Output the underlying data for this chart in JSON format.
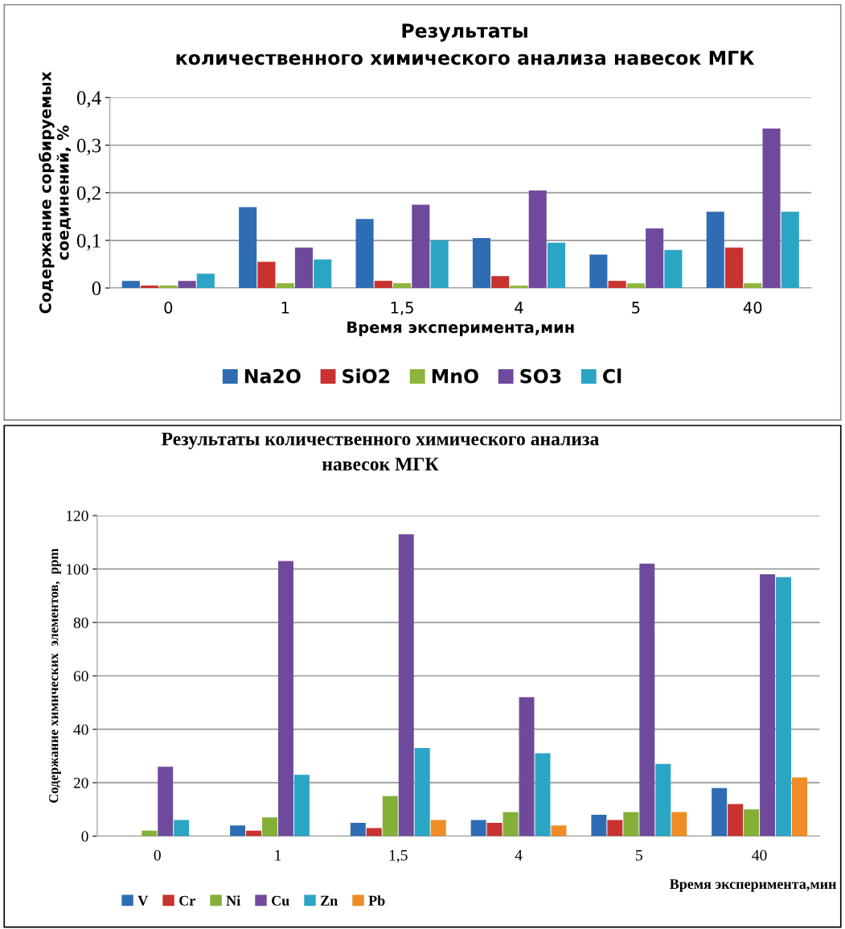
{
  "chart_data": [
    {
      "type": "bar",
      "title": "Результаты\nколичественного химического анализа навесок МГК",
      "xlabel": "Время эксперимента,мин",
      "ylabel": "Содержание сорбируемых\nсоединений, %",
      "categories": [
        "0",
        "1",
        "1,5",
        "4",
        "5",
        "40"
      ],
      "series": [
        {
          "name": "Na2O",
          "color": "#2e6db4",
          "values": [
            0.015,
            0.17,
            0.145,
            0.105,
            0.07,
            0.16
          ]
        },
        {
          "name": "SiO2",
          "color": "#c8322f",
          "values": [
            0.005,
            0.055,
            0.015,
            0.025,
            0.015,
            0.085
          ]
        },
        {
          "name": "MnO",
          "color": "#8db43c",
          "values": [
            0.005,
            0.01,
            0.01,
            0.005,
            0.01,
            0.01
          ]
        },
        {
          "name": "SO3",
          "color": "#6f4a9c",
          "values": [
            0.015,
            0.085,
            0.175,
            0.205,
            0.125,
            0.335
          ]
        },
        {
          "name": "Cl",
          "color": "#2ba5c4",
          "values": [
            0.03,
            0.06,
            0.1,
            0.095,
            0.08,
            0.16
          ]
        }
      ],
      "ylim": [
        0,
        0.4
      ],
      "yticks": [
        0,
        {
          "value": 0.1,
          "label": "0,1"
        },
        {
          "value": 0.2,
          "label": "0,2"
        },
        {
          "value": 0.3,
          "label": "0,3"
        },
        {
          "value": 0.4,
          "label": "0,4"
        }
      ],
      "grid": "y",
      "legend": "bottom"
    },
    {
      "type": "bar",
      "title": "Результаты количественного химического анализа\nнавесок МГК",
      "xlabel": "Время эксперимента,мин",
      "ylabel": "Содержание химических  элементов,  ppm",
      "categories": [
        "0",
        "1",
        "1,5",
        "4",
        "5",
        "40"
      ],
      "series": [
        {
          "name": "V",
          "color": "#2e6db4",
          "values": [
            0,
            4,
            5,
            6,
            8,
            18
          ]
        },
        {
          "name": "Cr",
          "color": "#c8322f",
          "values": [
            0,
            2,
            3,
            5,
            6,
            12
          ]
        },
        {
          "name": "Ni",
          "color": "#84b038",
          "values": [
            2,
            7,
            15,
            9,
            9,
            10
          ]
        },
        {
          "name": "Cu",
          "color": "#6f4a9c",
          "values": [
            26,
            103,
            113,
            52,
            102,
            98
          ]
        },
        {
          "name": "Zn",
          "color": "#2ba5c4",
          "values": [
            6,
            23,
            33,
            31,
            27,
            97
          ]
        },
        {
          "name": "Pb",
          "color": "#ef8c26",
          "values": [
            0,
            0,
            6,
            4,
            9,
            22
          ]
        }
      ],
      "ylim": [
        0,
        120
      ],
      "yticks": [
        0,
        20,
        40,
        60,
        80,
        100,
        120
      ],
      "grid": "y",
      "legend": "bottom"
    }
  ]
}
